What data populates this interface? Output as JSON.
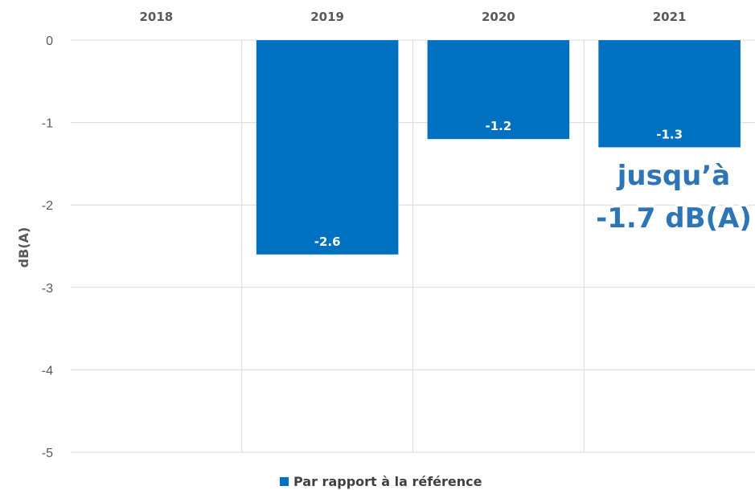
{
  "chart_data": {
    "type": "bar",
    "categories": [
      "2018",
      "2019",
      "2020",
      "2021"
    ],
    "series": [
      {
        "name": "Par rapport à la référence",
        "values": [
          null,
          -2.6,
          -1.2,
          -1.3
        ]
      }
    ],
    "data_labels": [
      "",
      "-2.6",
      "-1.2",
      "-1.3"
    ],
    "ylabel": "dB(A)",
    "ylim": [
      -5,
      0
    ],
    "yticks": [
      0,
      -1,
      -2,
      -3,
      -4,
      -5
    ],
    "grid": true,
    "category_axis_position": "top",
    "legend_position": "bottom-center",
    "annotation": {
      "line1": "jusqu’à",
      "line2": "-1.7 dB(A)"
    },
    "colors": {
      "bar": "#0070C0",
      "annotation": "#2E75B6",
      "grid": "#D9D9D9"
    }
  }
}
